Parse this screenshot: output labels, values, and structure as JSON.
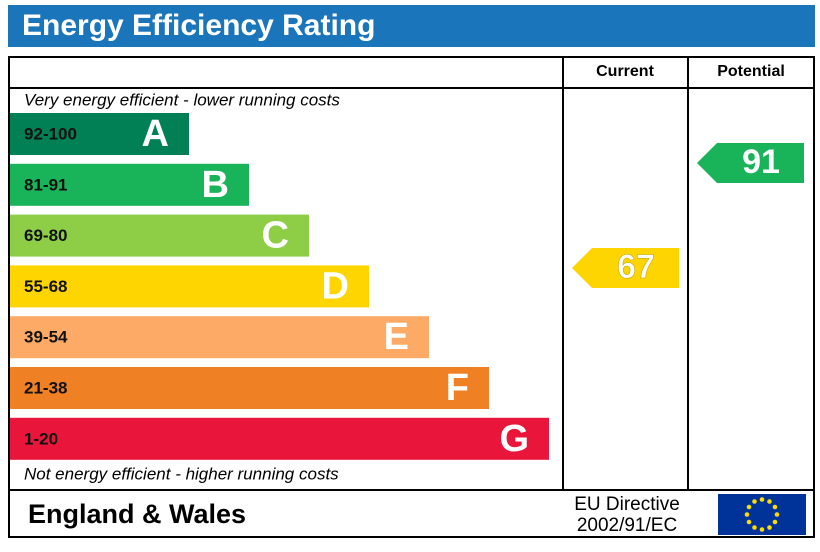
{
  "header": {
    "title": "Energy Efficiency Rating"
  },
  "columns": {
    "current": "Current",
    "potential": "Potential"
  },
  "top_note": "Very energy efficient - lower running costs",
  "bottom_note": "Not energy efficient - higher running costs",
  "bands": [
    {
      "range": "92-100",
      "letter": "A",
      "color": "#008054"
    },
    {
      "range": "81-91",
      "letter": "B",
      "color": "#19b459"
    },
    {
      "range": "69-80",
      "letter": "C",
      "color": "#8dce46"
    },
    {
      "range": "55-68",
      "letter": "D",
      "color": "#ffd500"
    },
    {
      "range": "39-54",
      "letter": "E",
      "color": "#fcaa65"
    },
    {
      "range": "21-38",
      "letter": "F",
      "color": "#ef8023"
    },
    {
      "range": "1-20",
      "letter": "G",
      "color": "#e9153b"
    }
  ],
  "current": {
    "value": 67,
    "color": "#ffd500"
  },
  "potential": {
    "value": 91,
    "color": "#19b459"
  },
  "footer": {
    "region": "England & Wales",
    "directive_line1": "EU Directive",
    "directive_line2": "2002/91/EC"
  }
}
